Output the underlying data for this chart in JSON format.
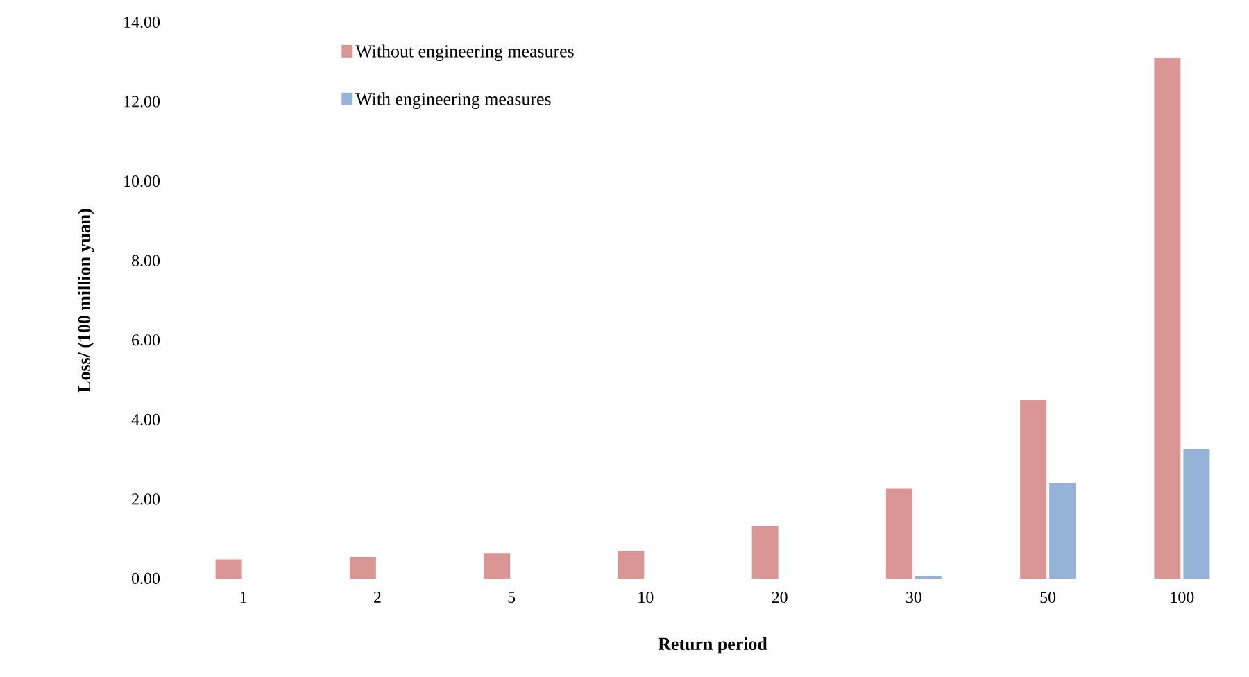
{
  "chart_data": {
    "type": "bar",
    "xlabel": "Return period",
    "ylabel": "Loss/ (100 million yuan)",
    "categories": [
      "1",
      "2",
      "5",
      "10",
      "20",
      "30",
      "50",
      "100"
    ],
    "series": [
      {
        "name": "Without engineering measures",
        "color": "#d99694",
        "values": [
          0.48,
          0.54,
          0.64,
          0.7,
          1.32,
          2.26,
          4.5,
          13.11
        ]
      },
      {
        "name": "With engineering measures",
        "color": "#95b3d7",
        "values": [
          0,
          0,
          0,
          0,
          0,
          0.06,
          2.4,
          3.26
        ]
      }
    ],
    "ylim": [
      0,
      14
    ],
    "yticks": [
      {
        "value": 0,
        "label": "0.00"
      },
      {
        "value": 2,
        "label": "2.00"
      },
      {
        "value": 4,
        "label": "4.00"
      },
      {
        "value": 6,
        "label": "6.00"
      },
      {
        "value": 8,
        "label": "8.00"
      },
      {
        "value": 10,
        "label": "10.00"
      },
      {
        "value": 12,
        "label": "12.00"
      },
      {
        "value": 14,
        "label": "14.00"
      }
    ],
    "legend": "top left"
  }
}
